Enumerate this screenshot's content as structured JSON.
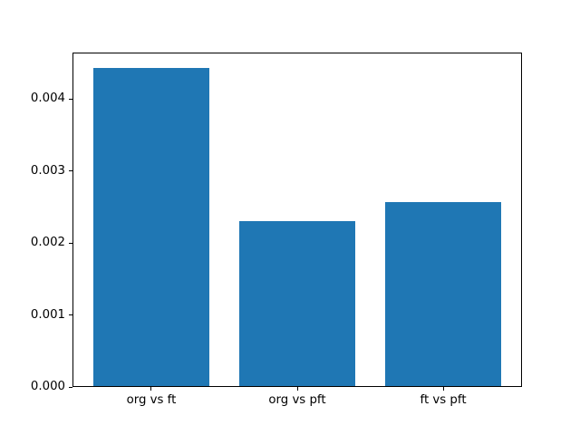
{
  "chart_data": {
    "type": "bar",
    "categories": [
      "org vs ft",
      "org vs pft",
      "ft vs pft"
    ],
    "values": [
      0.00443,
      0.0023,
      0.00257
    ],
    "title": "",
    "xlabel": "",
    "ylabel": "",
    "ylim": [
      0,
      0.00465
    ],
    "yticks": [
      0.0,
      0.001,
      0.002,
      0.003,
      0.004
    ],
    "ytick_labels": [
      "0.000",
      "0.001",
      "0.002",
      "0.003",
      "0.004"
    ],
    "grid": false,
    "legend": false,
    "bar_color": "#1f77b4",
    "background_color": "#ffffff",
    "spine_color": "#000000"
  }
}
